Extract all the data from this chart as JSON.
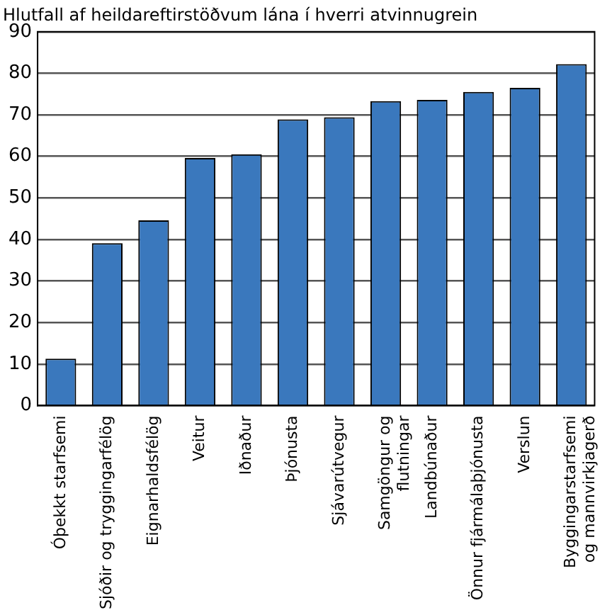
{
  "chart_data": {
    "type": "bar",
    "title": "Hlutfall af heildareftirstöðvum lána í hverri atvinnugrein",
    "categories": [
      "Óþekkt starfsemi",
      "Sjóðir og tryggingarfélög",
      "Eignarhaldsfélög",
      "Veitur",
      "Iðnaður",
      "Þjónusta",
      "Sjávarútvegur",
      "Samgöngur og\nflutningar",
      "Landbúnaður",
      "Önnur fjármálaþjónusta",
      "Verslun",
      "Byggingarstarfsemi\nog mannvirkjagerð"
    ],
    "values": [
      11.3,
      39.1,
      44.6,
      59.6,
      60.5,
      68.9,
      69.4,
      73.3,
      73.6,
      75.5,
      76.5,
      82.2
    ],
    "color": "#3a78bd",
    "ylim": [
      0,
      90
    ],
    "yticks": [
      0,
      10,
      20,
      30,
      40,
      50,
      60,
      70,
      80,
      90
    ],
    "grid": "y"
  }
}
